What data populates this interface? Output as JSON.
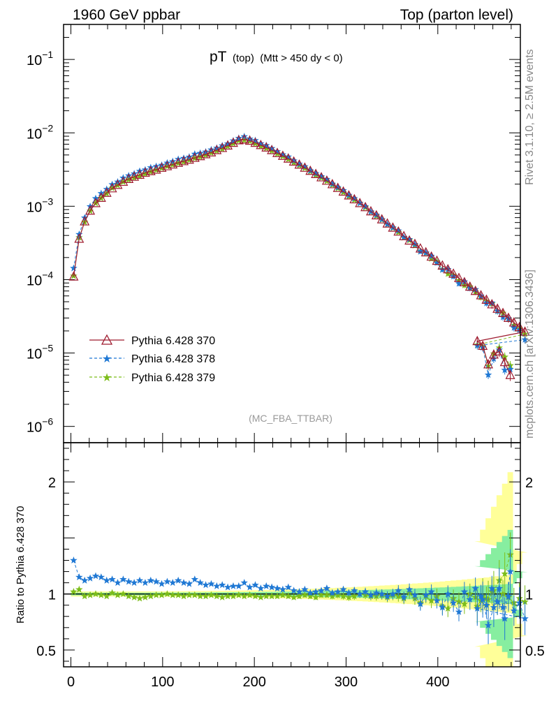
{
  "header": {
    "left": "1960 GeV ppbar",
    "right": "Top (parton level)"
  },
  "plot_title": {
    "main": "pT",
    "sub1": "(top)",
    "sub2": "(Mtt > 450 dy < 0)"
  },
  "side_notes": {
    "rivet": "Rivet 3.1.10, ≥ 2.5M events",
    "mcplots": "mcplots.cern.ch [arXiv:1306.3436]"
  },
  "watermark": "(MC_FBA_TTBAR)",
  "ratio_ylabel": "Ratio to Pythia 6.428 370",
  "colors": {
    "s370": "#9e1a2e",
    "s378": "#1f78d4",
    "s379": "#7cbd1a",
    "band_yellow": "#ffff99",
    "band_green": "#87eea0"
  },
  "legend": [
    {
      "label": "Pythia 6.428 370"
    },
    {
      "label": "Pythia 6.428 378"
    },
    {
      "label": "Pythia 6.428 379"
    }
  ],
  "main_y_ticks": [
    {
      "value": 0.1,
      "base": "10",
      "exp": "−1"
    },
    {
      "value": 0.01,
      "base": "10",
      "exp": "−2"
    },
    {
      "value": 0.001,
      "base": "10",
      "exp": "−3"
    },
    {
      "value": 0.0001,
      "base": "10",
      "exp": "−4"
    },
    {
      "value": 1e-05,
      "base": "10",
      "exp": "−5"
    },
    {
      "value": 1e-06,
      "base": "10",
      "exp": "−6"
    }
  ],
  "ratio_y_ticks": [
    {
      "value": 2,
      "label": "2"
    },
    {
      "value": 1,
      "label": "1"
    },
    {
      "value": 0.5,
      "label": "0.5"
    }
  ],
  "x_ticks": [
    {
      "value": 0,
      "label": "0"
    },
    {
      "value": 100,
      "label": "100"
    },
    {
      "value": 200,
      "label": "200"
    },
    {
      "value": 300,
      "label": "300"
    },
    {
      "value": 400,
      "label": "400"
    }
  ],
  "chart_data": {
    "type": "line",
    "xlim": [
      -8,
      490
    ],
    "ylim": [
      6e-07,
      0.3
    ],
    "ratio_ylim": [
      0.35,
      2.35
    ],
    "yscale": "log",
    "bin_width": 6,
    "x_start": 3,
    "series": [
      {
        "name": "Pythia 6.428 370",
        "values": [
          0.00011,
          0.00036,
          0.00062,
          0.00087,
          0.0011,
          0.0013,
          0.00152,
          0.00175,
          0.00195,
          0.00215,
          0.00235,
          0.00252,
          0.00268,
          0.00285,
          0.003,
          0.00315,
          0.00333,
          0.0035,
          0.0037,
          0.0039,
          0.0041,
          0.0043,
          0.00455,
          0.0048,
          0.0051,
          0.0054,
          0.0058,
          0.0062,
          0.0067,
          0.0073,
          0.0079,
          0.0081,
          0.0078,
          0.0073,
          0.0068,
          0.0063,
          0.0058,
          0.0053,
          0.00485,
          0.00445,
          0.00405,
          0.00368,
          0.00334,
          0.00303,
          0.00274,
          0.00247,
          0.00222,
          0.00199,
          0.00177,
          0.00158,
          0.0014,
          0.00124,
          0.0011,
          0.00097,
          0.00085,
          0.00075,
          0.00066,
          0.00058,
          0.00051,
          0.00045,
          0.00039,
          0.00034,
          0.000305,
          0.000265,
          0.000235,
          0.000205,
          0.00018,
          0.000155,
          0.000138,
          0.00012,
          0.000105,
          9.2e-05,
          8e-05,
          7e-05,
          6.1e-05,
          5.3e-05,
          4.6e-05,
          4e-05,
          3.5e-05,
          3e-05,
          2.6e-05,
          2.25e-05,
          1.95e-05
        ],
        "tail": [
          [
            443,
            1.45e-05
          ],
          [
            449,
            1.25e-05
          ],
          [
            455,
            7e-06
          ],
          [
            461,
            9.5e-06
          ],
          [
            467,
            1.05e-05
          ],
          [
            473,
            7.5e-06
          ],
          [
            479,
            5e-06
          ]
        ]
      },
      {
        "name": "Pythia 6.428 378",
        "ratio": [
          1.3,
          1.15,
          1.12,
          1.14,
          1.16,
          1.15,
          1.12,
          1.13,
          1.1,
          1.13,
          1.11,
          1.1,
          1.12,
          1.1,
          1.12,
          1.11,
          1.09,
          1.11,
          1.1,
          1.12,
          1.1,
          1.09,
          1.13,
          1.1,
          1.08,
          1.09,
          1.07,
          1.08,
          1.06,
          1.07,
          1.07,
          1.1,
          1.06,
          1.08,
          1.05,
          1.07,
          1.06,
          1.05,
          1.04,
          1.06,
          1.03,
          1.02,
          1.04,
          1.01,
          1.02,
          1.03,
          1.05,
          1.01,
          1.02,
          1.04,
          1.01,
          1.03,
          1.0,
          1.02,
          0.99,
          1.01,
          1.0,
          0.98,
          1.0,
          1.03,
          0.97,
          1.04,
          0.99,
          0.91,
          0.99,
          1.02,
          0.94,
          0.88,
          1.0,
          0.92,
          0.84,
          1.02,
          0.95,
          1.05,
          0.98,
          0.9,
          1.05,
          0.93,
          0.88,
          0.98,
          0.85,
          0.92,
          0.78,
          0.87,
          0.95,
          0.72,
          0.88,
          1.05,
          0.78,
          1.2,
          0.9,
          1.1,
          0.72,
          0.82,
          0.65,
          1.0,
          1.12,
          1.22
        ]
      },
      {
        "name": "Pythia 6.428 379",
        "ratio": [
          1.02,
          1.04,
          0.98,
          0.99,
          1.0,
          0.99,
          0.98,
          1.01,
          0.99,
          1.0,
          0.98,
          0.97,
          0.96,
          0.97,
          0.98,
          0.99,
          0.99,
          1.0,
          0.99,
          0.99,
          0.98,
          0.99,
          0.99,
          0.98,
          0.98,
          0.99,
          0.98,
          0.97,
          0.98,
          0.98,
          0.99,
          0.98,
          0.99,
          0.98,
          0.97,
          0.98,
          0.98,
          0.98,
          0.99,
          0.98,
          0.97,
          0.98,
          0.99,
          0.98,
          0.97,
          0.99,
          0.99,
          0.98,
          0.99,
          0.98,
          0.97,
          0.98,
          1.0,
          0.99,
          0.98,
          0.98,
          0.99,
          0.97,
          0.99,
          0.98,
          0.96,
          1.01,
          0.96,
          0.92,
          0.98,
          0.94,
          0.98,
          0.89,
          0.87,
          0.96,
          0.93,
          0.91,
          1.0,
          0.97,
          0.94,
          0.96,
          1.02,
          0.93,
          1.0,
          0.97,
          0.92,
          0.96,
          0.93,
          0.89,
          0.98,
          0.95,
          1.03,
          1.12,
          1.18,
          1.35,
          0.88,
          1.0,
          1.35,
          1.6,
          0.88,
          0.73,
          0.84,
          0.92
        ]
      }
    ],
    "xlabel": "",
    "ylabel": ""
  }
}
